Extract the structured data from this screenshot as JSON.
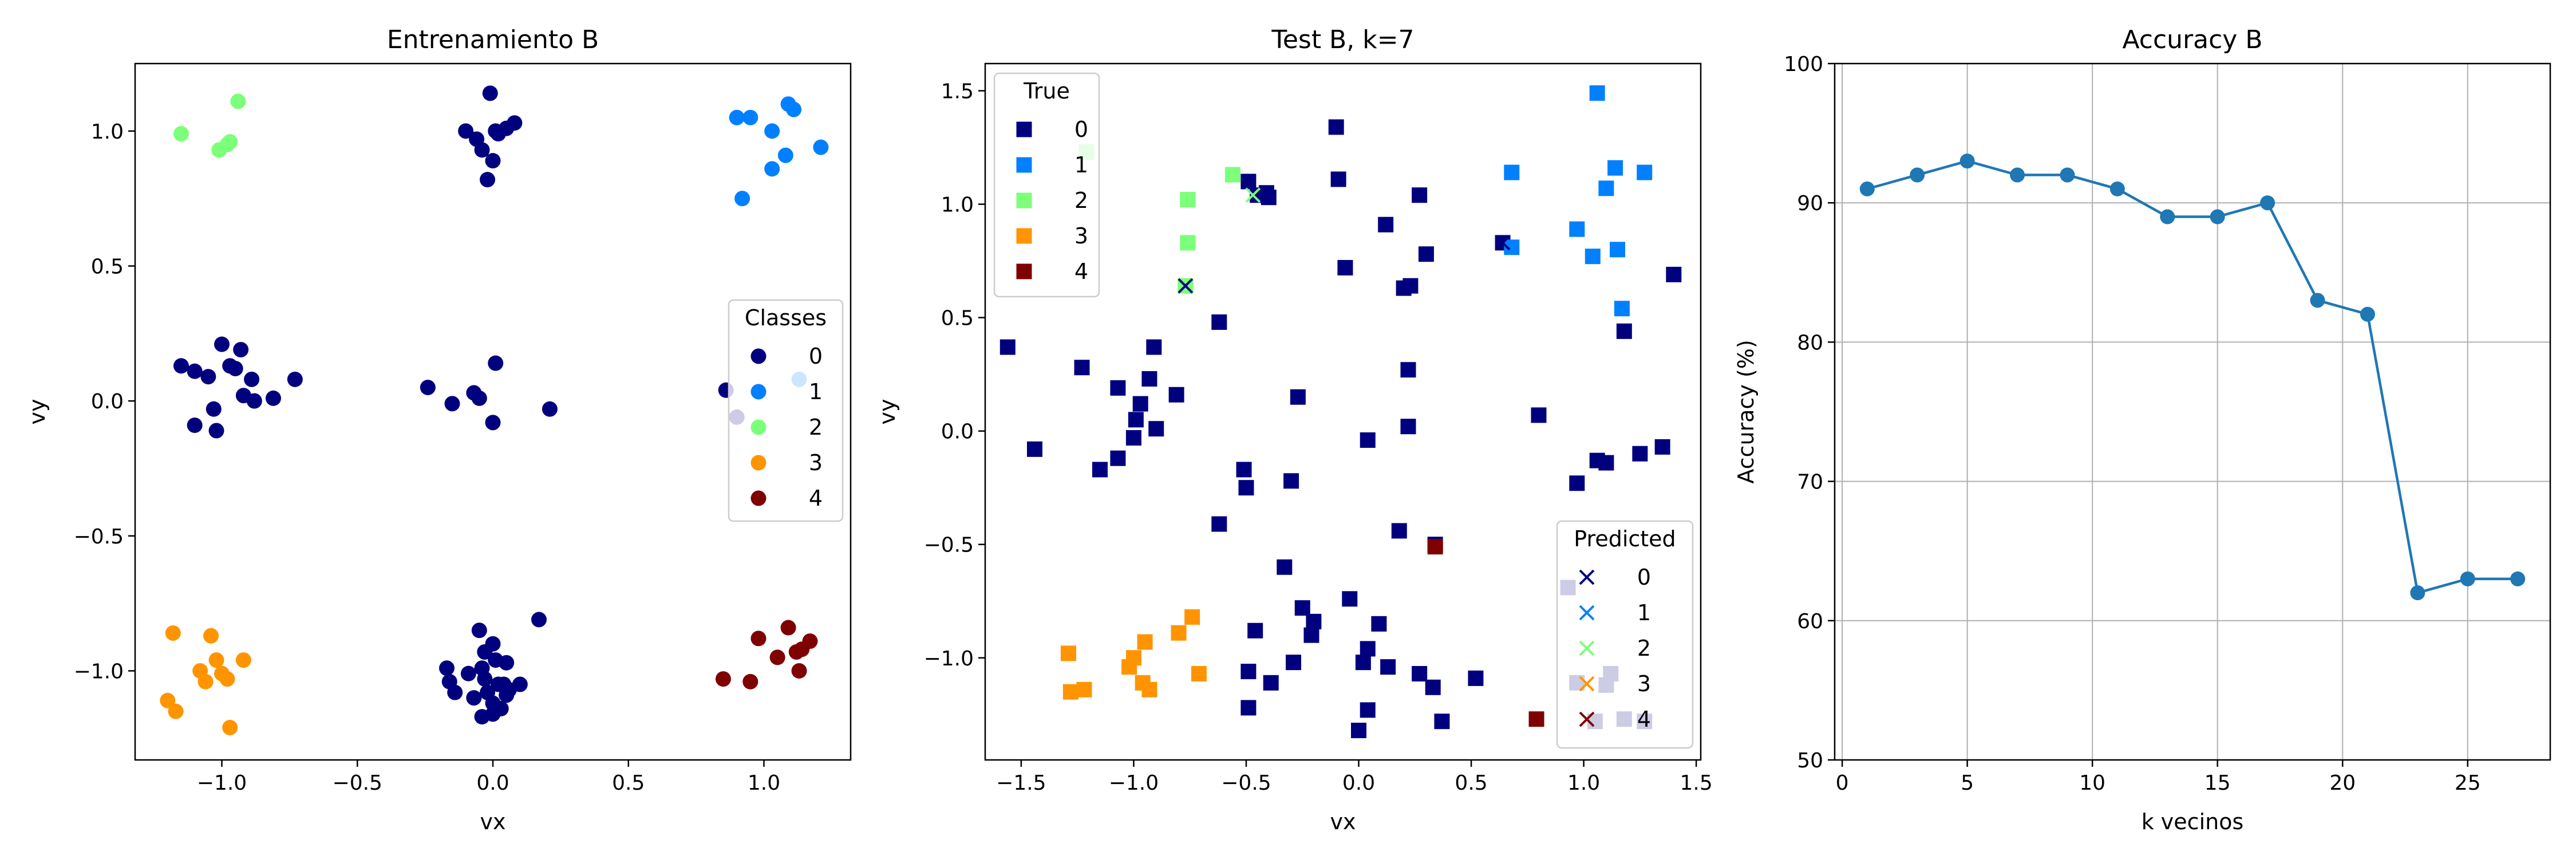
{
  "chart_data": [
    {
      "type": "scatter",
      "title": "Entrenamiento B",
      "xlabel": "vx",
      "ylabel": "vy",
      "xlim": [
        -1.32,
        1.32
      ],
      "ylim": [
        -1.33,
        1.25
      ],
      "xticks": [
        -1.0,
        -0.5,
        0.0,
        0.5,
        1.0
      ],
      "yticks": [
        -1.0,
        -0.5,
        0.0,
        0.5,
        1.0
      ],
      "xtick_labels": [
        "−1.0",
        "−0.5",
        "0.0",
        "0.5",
        "1.0"
      ],
      "ytick_labels": [
        "−1.0",
        "−0.5",
        "0.0",
        "0.5",
        "1.0"
      ],
      "grid": false,
      "legend": {
        "title": "Classes",
        "placement": "center-right",
        "entries": [
          {
            "label": "0",
            "color": "#00007f"
          },
          {
            "label": "1",
            "color": "#0080ff"
          },
          {
            "label": "2",
            "color": "#7cff79"
          },
          {
            "label": "3",
            "color": "#ff9400"
          },
          {
            "label": "4",
            "color": "#7f0000"
          }
        ]
      },
      "series": [
        {
          "class": "0",
          "marker": "circle",
          "color": "#00007f",
          "points": [
            [
              -0.01,
              1.14
            ],
            [
              -0.1,
              1.0
            ],
            [
              0.05,
              1.01
            ],
            [
              -0.06,
              0.97
            ],
            [
              0.02,
              0.99
            ],
            [
              0.08,
              1.03
            ],
            [
              -0.04,
              0.93
            ],
            [
              0.0,
              0.89
            ],
            [
              -0.02,
              0.82
            ],
            [
              0.01,
              1.0
            ],
            [
              -1.15,
              0.13
            ],
            [
              -1.1,
              0.11
            ],
            [
              -1.0,
              0.21
            ],
            [
              -0.93,
              0.19
            ],
            [
              -0.95,
              0.12
            ],
            [
              -0.89,
              0.08
            ],
            [
              -1.05,
              0.09
            ],
            [
              -1.03,
              -0.03
            ],
            [
              -1.1,
              -0.09
            ],
            [
              -1.02,
              -0.11
            ],
            [
              -0.92,
              0.02
            ],
            [
              -0.88,
              0.0
            ],
            [
              -0.81,
              0.01
            ],
            [
              -0.73,
              0.08
            ],
            [
              -0.97,
              0.13
            ],
            [
              -0.24,
              0.05
            ],
            [
              -0.15,
              -0.01
            ],
            [
              -0.07,
              0.03
            ],
            [
              -0.05,
              0.01
            ],
            [
              0.0,
              -0.08
            ],
            [
              0.01,
              0.14
            ],
            [
              0.21,
              -0.03
            ],
            [
              0.86,
              0.04
            ],
            [
              0.9,
              -0.06
            ],
            [
              -0.05,
              -0.85
            ],
            [
              -0.03,
              -0.93
            ],
            [
              0.17,
              -0.81
            ],
            [
              0.0,
              -0.9
            ],
            [
              -0.17,
              -0.99
            ],
            [
              -0.16,
              -1.04
            ],
            [
              -0.09,
              -1.01
            ],
            [
              -0.04,
              -0.99
            ],
            [
              -0.03,
              -1.03
            ],
            [
              0.01,
              -0.96
            ],
            [
              0.05,
              -0.97
            ],
            [
              0.02,
              -1.05
            ],
            [
              0.06,
              -1.07
            ],
            [
              0.1,
              -1.05
            ],
            [
              -0.14,
              -1.08
            ],
            [
              -0.07,
              -1.1
            ],
            [
              -0.02,
              -1.08
            ],
            [
              0.0,
              -1.12
            ],
            [
              -0.04,
              -1.17
            ],
            [
              0.0,
              -1.16
            ],
            [
              0.03,
              -1.14
            ],
            [
              0.05,
              -1.09
            ],
            [
              0.04,
              -1.05
            ]
          ]
        },
        {
          "class": "1",
          "marker": "circle",
          "color": "#0080ff",
          "points": [
            [
              0.9,
              1.05
            ],
            [
              0.95,
              1.05
            ],
            [
              1.09,
              1.1
            ],
            [
              1.11,
              1.08
            ],
            [
              1.03,
              1.0
            ],
            [
              1.21,
              0.94
            ],
            [
              1.03,
              0.86
            ],
            [
              1.08,
              0.91
            ],
            [
              0.92,
              0.75
            ],
            [
              1.13,
              0.08
            ]
          ]
        },
        {
          "class": "2",
          "marker": "circle",
          "color": "#7cff79",
          "points": [
            [
              -1.15,
              0.99
            ],
            [
              -0.94,
              1.11
            ],
            [
              -1.01,
              0.93
            ],
            [
              -0.98,
              0.95
            ],
            [
              -0.97,
              0.96
            ]
          ]
        },
        {
          "class": "3",
          "marker": "circle",
          "color": "#ff9400",
          "points": [
            [
              -1.18,
              -0.86
            ],
            [
              -1.04,
              -0.87
            ],
            [
              -1.02,
              -0.96
            ],
            [
              -1.08,
              -1.0
            ],
            [
              -1.06,
              -1.04
            ],
            [
              -1.0,
              -1.01
            ],
            [
              -0.98,
              -1.03
            ],
            [
              -0.92,
              -0.96
            ],
            [
              -1.2,
              -1.11
            ],
            [
              -1.17,
              -1.15
            ],
            [
              -0.97,
              -1.21
            ]
          ]
        },
        {
          "class": "4",
          "marker": "circle",
          "color": "#7f0000",
          "points": [
            [
              0.98,
              -0.88
            ],
            [
              1.09,
              -0.84
            ],
            [
              1.17,
              -0.89
            ],
            [
              1.12,
              -0.93
            ],
            [
              1.05,
              -0.95
            ],
            [
              1.14,
              -0.92
            ],
            [
              0.85,
              -1.03
            ],
            [
              0.95,
              -1.04
            ],
            [
              1.13,
              -1.0
            ]
          ]
        }
      ]
    },
    {
      "type": "scatter",
      "title": "Test B, k=7",
      "xlabel": "vx",
      "ylabel": "vy",
      "xlim": [
        -1.66,
        1.52
      ],
      "ylim": [
        -1.45,
        1.62
      ],
      "xticks": [
        -1.5,
        -1.0,
        -0.5,
        0.0,
        0.5,
        1.0,
        1.5
      ],
      "yticks": [
        -1.0,
        -0.5,
        0.0,
        0.5,
        1.0,
        1.5
      ],
      "xtick_labels": [
        "−1.5",
        "−1.0",
        "−0.5",
        "0.0",
        "0.5",
        "1.0",
        "1.5"
      ],
      "ytick_labels": [
        "−1.0",
        "−0.5",
        "0.0",
        "0.5",
        "1.0",
        "1.5"
      ],
      "grid": false,
      "legends": [
        {
          "title": "True",
          "placement": "top-left",
          "marker": "square",
          "entries": [
            {
              "label": "0",
              "color": "#00007f"
            },
            {
              "label": "1",
              "color": "#0080ff"
            },
            {
              "label": "2",
              "color": "#7cff79"
            },
            {
              "label": "3",
              "color": "#ff9400"
            },
            {
              "label": "4",
              "color": "#7f0000"
            }
          ]
        },
        {
          "title": "Predicted",
          "placement": "bottom-right",
          "marker": "x",
          "entries": [
            {
              "label": "0",
              "color": "#00007f"
            },
            {
              "label": "1",
              "color": "#0080ff"
            },
            {
              "label": "2",
              "color": "#7cff79"
            },
            {
              "label": "3",
              "color": "#ff9400"
            },
            {
              "label": "4",
              "color": "#7f0000"
            }
          ]
        }
      ],
      "true_series": [
        {
          "class": "0",
          "marker": "square",
          "color": "#00007f",
          "points": [
            [
              -0.1,
              1.34
            ],
            [
              -0.09,
              1.11
            ],
            [
              -0.49,
              1.1
            ],
            [
              -0.41,
              1.05
            ],
            [
              -0.45,
              1.04
            ],
            [
              -0.4,
              1.03
            ],
            [
              0.12,
              0.91
            ],
            [
              0.27,
              1.04
            ],
            [
              0.3,
              0.78
            ],
            [
              -0.06,
              0.72
            ],
            [
              0.2,
              0.63
            ],
            [
              0.23,
              0.64
            ],
            [
              0.64,
              0.83
            ],
            [
              -0.62,
              0.48
            ],
            [
              -1.56,
              0.37
            ],
            [
              -1.23,
              0.28
            ],
            [
              -0.91,
              0.37
            ],
            [
              -1.07,
              0.19
            ],
            [
              -0.81,
              0.16
            ],
            [
              -0.93,
              0.23
            ],
            [
              -0.97,
              0.12
            ],
            [
              -0.99,
              0.05
            ],
            [
              -1.0,
              -0.03
            ],
            [
              -0.9,
              0.01
            ],
            [
              -1.07,
              -0.12
            ],
            [
              -1.44,
              -0.08
            ],
            [
              -1.15,
              -0.17
            ],
            [
              -0.27,
              0.15
            ],
            [
              0.22,
              0.27
            ],
            [
              0.04,
              -0.04
            ],
            [
              0.22,
              0.02
            ],
            [
              0.8,
              0.07
            ],
            [
              -0.51,
              -0.17
            ],
            [
              -0.5,
              -0.25
            ],
            [
              -0.3,
              -0.22
            ],
            [
              -0.62,
              -0.41
            ],
            [
              0.18,
              -0.44
            ],
            [
              0.97,
              -0.23
            ],
            [
              1.06,
              -0.13
            ],
            [
              1.1,
              -0.14
            ],
            [
              1.25,
              -0.1
            ],
            [
              1.35,
              -0.07
            ],
            [
              0.93,
              -0.69
            ],
            [
              -0.33,
              -0.6
            ],
            [
              -0.04,
              -0.74
            ],
            [
              -0.25,
              -0.78
            ],
            [
              -0.2,
              -0.84
            ],
            [
              -0.21,
              -0.9
            ],
            [
              0.09,
              -0.85
            ],
            [
              0.04,
              -0.96
            ],
            [
              -0.46,
              -0.88
            ],
            [
              -0.49,
              -1.06
            ],
            [
              -0.39,
              -1.11
            ],
            [
              -0.29,
              -1.02
            ],
            [
              0.02,
              -1.02
            ],
            [
              0.13,
              -1.04
            ],
            [
              0.27,
              -1.07
            ],
            [
              0.33,
              -1.13
            ],
            [
              0.52,
              -1.09
            ],
            [
              -0.49,
              -1.22
            ],
            [
              0.04,
              -1.23
            ],
            [
              -0.0,
              -1.32
            ],
            [
              0.37,
              -1.28
            ],
            [
              0.97,
              -1.11
            ],
            [
              1.12,
              -1.07
            ],
            [
              1.1,
              -1.12
            ],
            [
              1.05,
              -1.28
            ],
            [
              1.18,
              -1.27
            ],
            [
              1.27,
              -1.28
            ],
            [
              1.4,
              0.69
            ],
            [
              1.18,
              0.44
            ],
            [
              0.34,
              -0.5
            ]
          ]
        },
        {
          "class": "1",
          "marker": "square",
          "color": "#0080ff",
          "points": [
            [
              1.06,
              1.49
            ],
            [
              0.68,
              1.14
            ],
            [
              1.27,
              1.14
            ],
            [
              1.14,
              1.16
            ],
            [
              1.1,
              1.07
            ],
            [
              0.97,
              0.89
            ],
            [
              1.04,
              0.77
            ],
            [
              1.15,
              0.8
            ],
            [
              0.68,
              0.81
            ],
            [
              1.17,
              0.54
            ]
          ]
        },
        {
          "class": "2",
          "marker": "square",
          "color": "#7cff79",
          "points": [
            [
              -1.21,
              1.23
            ],
            [
              -0.56,
              1.13
            ],
            [
              -0.76,
              1.02
            ],
            [
              -0.76,
              0.83
            ],
            [
              -0.77,
              0.64
            ]
          ]
        },
        {
          "class": "3",
          "marker": "square",
          "color": "#ff9400",
          "points": [
            [
              -1.29,
              -0.98
            ],
            [
              -1.0,
              -1.0
            ],
            [
              -1.02,
              -1.04
            ],
            [
              -0.8,
              -0.89
            ],
            [
              -0.74,
              -0.82
            ],
            [
              -0.95,
              -0.93
            ],
            [
              -0.71,
              -1.07
            ],
            [
              -0.96,
              -1.11
            ],
            [
              -0.93,
              -1.14
            ],
            [
              -1.22,
              -1.14
            ],
            [
              -1.28,
              -1.15
            ]
          ]
        },
        {
          "class": "4",
          "marker": "square",
          "color": "#7f0000",
          "points": [
            [
              0.79,
              -1.27
            ],
            [
              0.34,
              -0.51
            ]
          ]
        }
      ],
      "predicted_series": [
        {
          "class": "0",
          "marker": "x",
          "color": "#00007f",
          "points": [
            [
              -0.77,
              0.64
            ],
            [
              -0.91,
              0.37
            ],
            [
              0.64,
              0.83
            ],
            [
              1.4,
              0.69
            ],
            [
              1.18,
              0.44
            ]
          ]
        },
        {
          "class": "2",
          "marker": "x",
          "color": "#7cff79",
          "points": [
            [
              -0.47,
              1.04
            ]
          ]
        },
        {
          "class": "4",
          "marker": "x",
          "color": "#7f0000",
          "points": [
            [
              0.34,
              -0.51
            ]
          ]
        }
      ]
    },
    {
      "type": "line",
      "title": "Accuracy B",
      "xlabel": "k vecinos",
      "ylabel": "Accuracy (%)",
      "xlim": [
        -0.3,
        28.3
      ],
      "ylim": [
        50,
        100
      ],
      "xticks": [
        0,
        5,
        10,
        15,
        20,
        25
      ],
      "yticks": [
        50,
        60,
        70,
        80,
        90,
        100
      ],
      "xtick_labels": [
        "0",
        "5",
        "10",
        "15",
        "20",
        "25"
      ],
      "ytick_labels": [
        "50",
        "60",
        "70",
        "80",
        "90",
        "100"
      ],
      "grid": true,
      "color": "#1f77b4",
      "x": [
        1,
        3,
        5,
        7,
        9,
        11,
        13,
        15,
        17,
        19,
        21,
        23,
        25,
        27
      ],
      "values": [
        91,
        92,
        93,
        92,
        92,
        91,
        89,
        89,
        90,
        83,
        82,
        62,
        63,
        63
      ]
    }
  ]
}
